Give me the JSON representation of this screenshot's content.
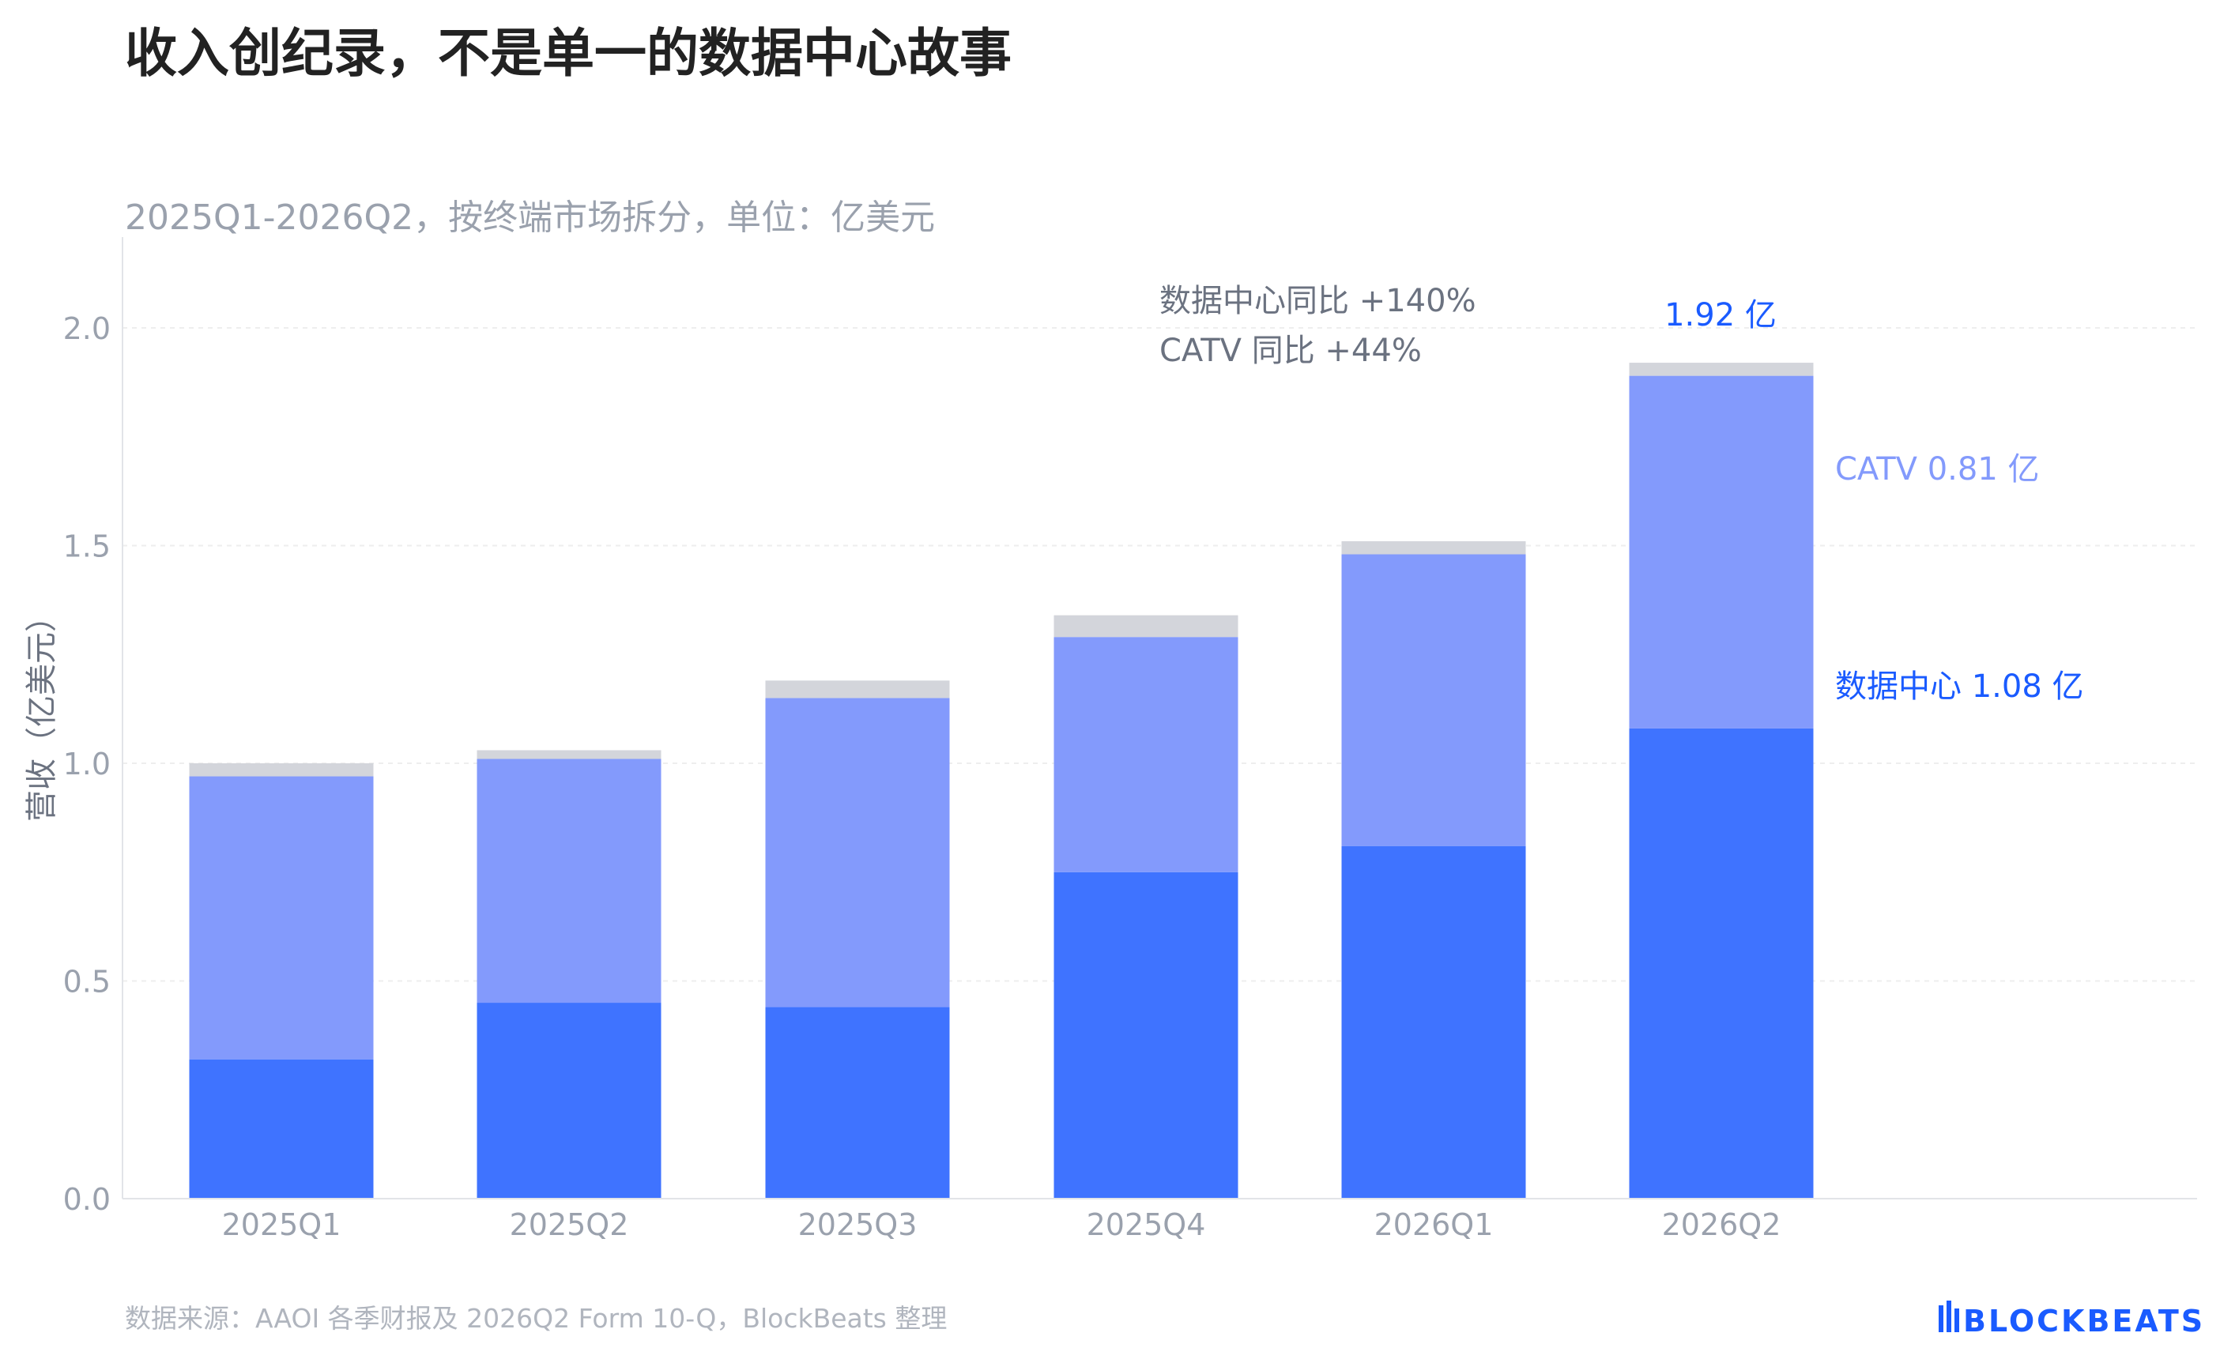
{
  "title": "收入创纪录，不是单一的数据中心故事",
  "subtitle": "2025Q1-2026Q2，按终端市场拆分，单位：亿美元",
  "source": "数据来源：AAOI 各季财报及 2026Q2 Form 10-Q，BlockBeats 整理",
  "logo_text": "BLOCKBEATS",
  "colors": {
    "datacenter": "#3F73FF",
    "catv": "#839AFC",
    "other": "#D3D5DB",
    "title": "#222222",
    "muted": "#9AA1AD",
    "annotation": "#6B7280",
    "highlight": "#1A5BFF",
    "grid": "#EEEEEE"
  },
  "chart_data": {
    "type": "bar",
    "stacked": true,
    "categories": [
      "2025Q1",
      "2025Q2",
      "2025Q3",
      "2025Q4",
      "2026Q1",
      "2026Q2"
    ],
    "series": [
      {
        "values": [
          0.32,
          0.45,
          0.44,
          0.75,
          0.81,
          1.08
        ]
      },
      {
        "values": [
          0.65,
          0.56,
          0.71,
          0.54,
          0.67,
          0.81
        ]
      },
      {
        "values": [
          0.03,
          0.02,
          0.04,
          0.05,
          0.03,
          0.03
        ]
      }
    ],
    "ylabel": "营收（亿美元）",
    "ylim": [
      0,
      2.0
    ],
    "yticks": [
      "0.0",
      "0.5",
      "1.0",
      "1.5",
      "2.0"
    ],
    "grid": true,
    "annotations": {
      "yoy_datacenter": "数据中心同比 +140%",
      "yoy_catv": "CATV 同比 +44%",
      "total_label": "1.92 亿",
      "catv_label": "CATV 0.81 亿",
      "datacenter_label": "数据中心 1.08 亿"
    }
  }
}
